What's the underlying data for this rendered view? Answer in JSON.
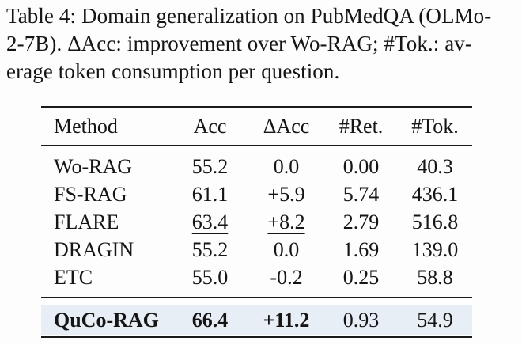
{
  "caption": {
    "lines": [
      "Table 4: Domain generalization on PubMedQA (OLMo-",
      "2-7B). ΔAcc: improvement over Wo-RAG; #Tok.: av-",
      "erage token consumption per question."
    ],
    "full_text": "Table 4: Domain generalization on PubMedQA (OLMo-2-7B). ΔAcc: improvement over Wo-RAG; #Tok.: average token consumption per question."
  },
  "table": {
    "headers": [
      "Method",
      "Acc",
      "ΔAcc",
      "#Ret.",
      "#Tok."
    ],
    "rows": [
      [
        "Wo-RAG",
        "55.2",
        "0.0",
        "0.00",
        "40.3"
      ],
      [
        "FS-RAG",
        "61.1",
        "+5.9",
        "5.74",
        "436.1"
      ],
      [
        "FLARE",
        "63.4",
        "+8.2",
        "2.79",
        "516.8"
      ],
      [
        "DRAGIN",
        "55.2",
        "0.0",
        "1.69",
        "139.0"
      ],
      [
        "ETC",
        "55.0",
        "-0.2",
        "0.25",
        "58.8"
      ]
    ],
    "highlight_row": [
      "QuCo-RAG",
      "66.4",
      "+11.2",
      "0.93",
      "54.9"
    ]
  },
  "chart_data": {
    "type": "table",
    "title": "Table 4: Domain generalization on PubMedQA (OLMo-2-7B)",
    "columns": [
      "Method",
      "Acc",
      "ΔAcc",
      "#Ret.",
      "#Tok."
    ],
    "rows": [
      {
        "method": "Wo-RAG",
        "acc": 55.2,
        "delta_acc": 0.0,
        "ret": 0.0,
        "tok": 40.3
      },
      {
        "method": "FS-RAG",
        "acc": 61.1,
        "delta_acc": 5.9,
        "ret": 5.74,
        "tok": 436.1
      },
      {
        "method": "FLARE",
        "acc": 63.4,
        "delta_acc": 8.2,
        "ret": 2.79,
        "tok": 516.8
      },
      {
        "method": "DRAGIN",
        "acc": 55.2,
        "delta_acc": 0.0,
        "ret": 1.69,
        "tok": 139.0
      },
      {
        "method": "ETC",
        "acc": 55.0,
        "delta_acc": -0.2,
        "ret": 0.25,
        "tok": 58.8
      },
      {
        "method": "QuCo-RAG",
        "acc": 66.4,
        "delta_acc": 11.2,
        "ret": 0.93,
        "tok": 54.9
      }
    ],
    "styling_notes": {
      "underlined_second_best": [
        "FLARE Acc 63.4",
        "FLARE ΔAcc +8.2"
      ],
      "bold_best": [
        "QuCo-RAG",
        "66.4",
        "+11.2"
      ],
      "highlighted_row": "QuCo-RAG"
    }
  },
  "colors": {
    "highlight_background": "#e8eef5",
    "rule": "#1a1a1a",
    "text": "#151515",
    "page_background": "#fdfdfd"
  }
}
